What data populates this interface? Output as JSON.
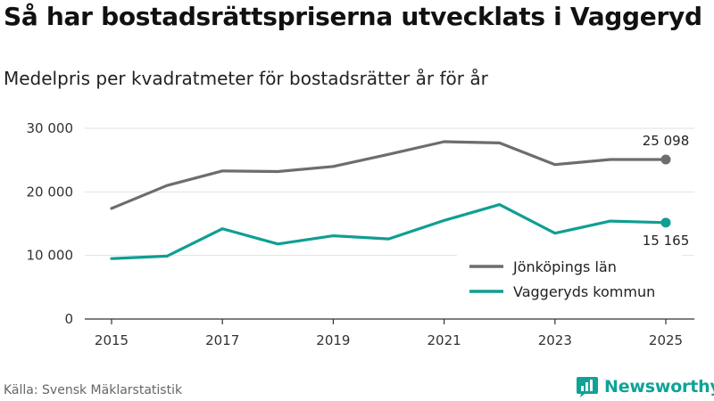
{
  "header": {
    "title": "Så har bostadsrättspriserna utvecklats i Vaggeryd",
    "subtitle": "Medelpris per kvadratmeter för bostadsrätter år för år"
  },
  "footer": {
    "source": "Källa: Svensk Mäklarstatistik",
    "brand": "Newsworthy"
  },
  "colors": {
    "lan": "#6d6c71",
    "kommun": "#109e93",
    "grid": "#e2e2e2",
    "axis": "#333333",
    "brand": "#0fa397"
  },
  "chart_data": {
    "type": "line",
    "x": [
      2015,
      2016,
      2017,
      2018,
      2019,
      2020,
      2021,
      2022,
      2023,
      2024,
      2025
    ],
    "xticks": [
      2015,
      2017,
      2019,
      2021,
      2023,
      2025
    ],
    "xtick_labels": [
      "2015",
      "2017",
      "2019",
      "2021",
      "2023",
      "2025"
    ],
    "yticks": [
      0,
      10000,
      20000,
      30000
    ],
    "ytick_labels": [
      "0",
      "10 000",
      "20 000",
      "30 000"
    ],
    "ylim": [
      0,
      30000
    ],
    "xlim": [
      2015,
      2025
    ],
    "series": [
      {
        "name": "Jönköpings län",
        "key": "lan",
        "values": [
          17400,
          21000,
          23300,
          23200,
          24000,
          25900,
          27900,
          27700,
          24300,
          25100,
          25098
        ],
        "end_label": "25 098"
      },
      {
        "name": "Vaggeryds kommun",
        "key": "kommun",
        "values": [
          9500,
          9900,
          14200,
          11800,
          13100,
          12600,
          15500,
          18000,
          13500,
          15400,
          15165
        ],
        "end_label": "15 165"
      }
    ],
    "grid": true,
    "legend": "bottom-right"
  }
}
